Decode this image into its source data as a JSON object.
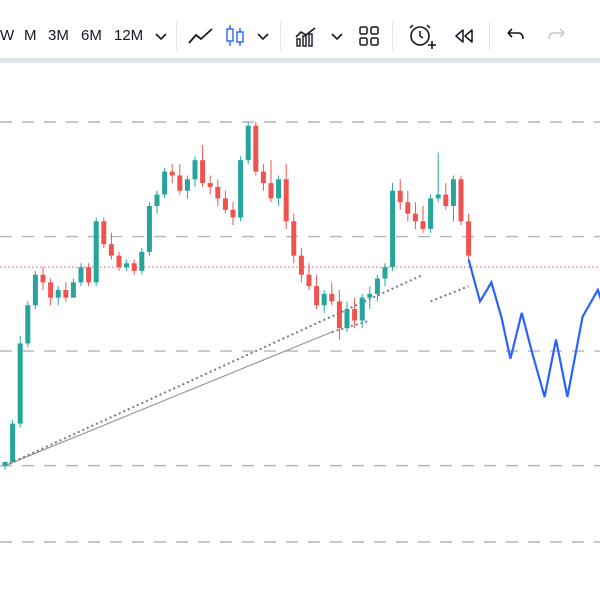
{
  "toolbar": {
    "timeframes": [
      "W",
      "M",
      "3M",
      "6M",
      "12M"
    ],
    "icons": [
      "chevron-down-icon",
      "line-chart-icon",
      "candlestick-icon",
      "chevron-down-icon",
      "indicators-icon",
      "chevron-down-icon",
      "layout-grid-icon",
      "alert-add-icon",
      "replay-icon",
      "undo-icon",
      "redo-icon"
    ]
  },
  "colors": {
    "up": "#26a69a",
    "down": "#ef5350",
    "projection": "#2962ff",
    "grid": "#b2b5be",
    "trendline": "#9598a1",
    "price_line": "#ef5350"
  },
  "chart_data": {
    "type": "candlestick",
    "title": "",
    "xlabel": "",
    "ylabel": "",
    "ylim": [
      0,
      100
    ],
    "candles": [
      {
        "o": 20,
        "h": 21,
        "l": 19,
        "c": 21
      },
      {
        "o": 21,
        "h": 32,
        "l": 21,
        "c": 31
      },
      {
        "o": 31,
        "h": 54,
        "l": 30,
        "c": 52
      },
      {
        "o": 52,
        "h": 63,
        "l": 51,
        "c": 62
      },
      {
        "o": 62,
        "h": 71,
        "l": 61,
        "c": 70
      },
      {
        "o": 70,
        "h": 72,
        "l": 66,
        "c": 68
      },
      {
        "o": 68,
        "h": 69,
        "l": 62,
        "c": 64
      },
      {
        "o": 64,
        "h": 67,
        "l": 62,
        "c": 66
      },
      {
        "o": 66,
        "h": 68,
        "l": 63,
        "c": 64
      },
      {
        "o": 64,
        "h": 69,
        "l": 64,
        "c": 68
      },
      {
        "o": 68,
        "h": 73,
        "l": 67,
        "c": 72
      },
      {
        "o": 72,
        "h": 73,
        "l": 67,
        "c": 68
      },
      {
        "o": 68,
        "h": 85,
        "l": 67,
        "c": 84
      },
      {
        "o": 84,
        "h": 85,
        "l": 77,
        "c": 78
      },
      {
        "o": 78,
        "h": 81,
        "l": 74,
        "c": 75
      },
      {
        "o": 75,
        "h": 76,
        "l": 71,
        "c": 72
      },
      {
        "o": 72,
        "h": 74,
        "l": 71,
        "c": 73
      },
      {
        "o": 73,
        "h": 74,
        "l": 70,
        "c": 71
      },
      {
        "o": 71,
        "h": 77,
        "l": 70,
        "c": 76
      },
      {
        "o": 76,
        "h": 89,
        "l": 75,
        "c": 88
      },
      {
        "o": 88,
        "h": 92,
        "l": 86,
        "c": 91
      },
      {
        "o": 91,
        "h": 98,
        "l": 90,
        "c": 97
      },
      {
        "o": 97,
        "h": 99,
        "l": 94,
        "c": 96
      },
      {
        "o": 96,
        "h": 99,
        "l": 91,
        "c": 92
      },
      {
        "o": 92,
        "h": 96,
        "l": 90,
        "c": 95
      },
      {
        "o": 95,
        "h": 101,
        "l": 93,
        "c": 100
      },
      {
        "o": 100,
        "h": 104,
        "l": 93,
        "c": 94
      },
      {
        "o": 94,
        "h": 96,
        "l": 91,
        "c": 93
      },
      {
        "o": 93,
        "h": 95,
        "l": 88,
        "c": 90
      },
      {
        "o": 90,
        "h": 92,
        "l": 86,
        "c": 87
      },
      {
        "o": 87,
        "h": 89,
        "l": 83,
        "c": 85
      },
      {
        "o": 85,
        "h": 101,
        "l": 84,
        "c": 100
      },
      {
        "o": 100,
        "h": 110,
        "l": 99,
        "c": 109
      },
      {
        "o": 109,
        "h": 110,
        "l": 96,
        "c": 97
      },
      {
        "o": 97,
        "h": 99,
        "l": 92,
        "c": 94
      },
      {
        "o": 94,
        "h": 100,
        "l": 89,
        "c": 90
      },
      {
        "o": 90,
        "h": 96,
        "l": 88,
        "c": 95
      },
      {
        "o": 95,
        "h": 99,
        "l": 82,
        "c": 84
      },
      {
        "o": 84,
        "h": 86,
        "l": 73,
        "c": 75
      },
      {
        "o": 75,
        "h": 77,
        "l": 68,
        "c": 70
      },
      {
        "o": 70,
        "h": 73,
        "l": 66,
        "c": 67
      },
      {
        "o": 67,
        "h": 70,
        "l": 61,
        "c": 62
      },
      {
        "o": 62,
        "h": 66,
        "l": 60,
        "c": 65
      },
      {
        "o": 65,
        "h": 68,
        "l": 62,
        "c": 63
      },
      {
        "o": 63,
        "h": 66,
        "l": 53,
        "c": 56
      },
      {
        "o": 56,
        "h": 63,
        "l": 55,
        "c": 61
      },
      {
        "o": 61,
        "h": 64,
        "l": 56,
        "c": 58
      },
      {
        "o": 58,
        "h": 65,
        "l": 56,
        "c": 64
      },
      {
        "o": 64,
        "h": 67,
        "l": 61,
        "c": 65
      },
      {
        "o": 65,
        "h": 70,
        "l": 63,
        "c": 69
      },
      {
        "o": 69,
        "h": 73,
        "l": 67,
        "c": 72
      },
      {
        "o": 72,
        "h": 94,
        "l": 71,
        "c": 92
      },
      {
        "o": 92,
        "h": 95,
        "l": 87,
        "c": 89
      },
      {
        "o": 89,
        "h": 92,
        "l": 84,
        "c": 86
      },
      {
        "o": 86,
        "h": 89,
        "l": 82,
        "c": 84
      },
      {
        "o": 84,
        "h": 88,
        "l": 81,
        "c": 82
      },
      {
        "o": 82,
        "h": 91,
        "l": 81,
        "c": 90
      },
      {
        "o": 90,
        "h": 102,
        "l": 89,
        "c": 91
      },
      {
        "o": 91,
        "h": 94,
        "l": 87,
        "c": 88
      },
      {
        "o": 88,
        "h": 96,
        "l": 84,
        "c": 95
      },
      {
        "o": 95,
        "h": 96,
        "l": 83,
        "c": 84
      },
      {
        "o": 84,
        "h": 86,
        "l": 74,
        "c": 75
      }
    ],
    "projection": [
      {
        "i": 61,
        "y": 74
      },
      {
        "i": 62.5,
        "y": 63
      },
      {
        "i": 64,
        "y": 68
      },
      {
        "i": 65.3,
        "y": 59
      },
      {
        "i": 66.5,
        "y": 48
      },
      {
        "i": 68,
        "y": 60
      },
      {
        "i": 69.3,
        "y": 50
      },
      {
        "i": 71,
        "y": 38
      },
      {
        "i": 72.5,
        "y": 53
      },
      {
        "i": 74,
        "y": 38
      },
      {
        "i": 76,
        "y": 59
      },
      {
        "i": 78,
        "y": 66
      },
      {
        "i": 79,
        "y": 60
      }
    ],
    "support_line": {
      "from": {
        "i": 0,
        "y": 20
      },
      "to": {
        "i": 43,
        "y": 55
      }
    },
    "dotted_lines": [
      {
        "from": {
          "i": 0,
          "y": 20
        },
        "to": {
          "i": 55,
          "y": 70
        }
      },
      {
        "from": {
          "i": 43,
          "y": 55
        },
        "to": {
          "i": 48,
          "y": 58
        }
      },
      {
        "from": {
          "i": 56,
          "y": 63
        },
        "to": {
          "i": 61,
          "y": 67
        }
      }
    ],
    "price_line": 72,
    "gridlines": [
      0,
      20,
      50,
      80,
      110
    ]
  }
}
